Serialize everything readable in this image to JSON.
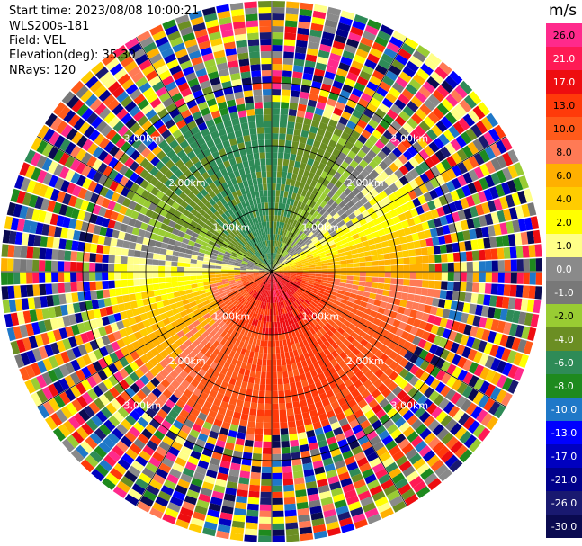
{
  "header": {
    "start_time": "Start time: 2023/08/08 10:00:21",
    "instrument": "WLS200s-181",
    "field": "Field: VEL",
    "elevation": "Elevation(deg): 35.30",
    "nrays": "NRays: 120"
  },
  "chart_data": {
    "type": "heatmap",
    "projection": "polar-ppi",
    "field": "VEL",
    "nrays": 120,
    "range_rings_km": [
      1.0,
      2.0,
      3.0
    ],
    "ring_labels": [
      "1.00km",
      "2.00km",
      "3.00km"
    ],
    "max_range_km": 4.3,
    "noise_beyond_km": 2.4,
    "colorbar": {
      "unit": "m/s",
      "ticks": [
        "26.0",
        "21.0",
        "17.0",
        "13.0",
        "10.0",
        "8.0",
        "6.0",
        "4.0",
        "2.0",
        "1.0",
        "0.0",
        "-1.0",
        "-2.0",
        "-4.0",
        "-6.0",
        "-8.0",
        "-10.0",
        "-13.0",
        "-17.0",
        "-21.0",
        "-26.0",
        "-30.0"
      ],
      "colors": [
        "#ff2a8c",
        "#ff1a55",
        "#ee0d10",
        "#ff3a0a",
        "#ff5a1a",
        "#ff7a55",
        "#ffb000",
        "#ffcc00",
        "#ffff00",
        "#ffff88",
        "#8a8a8a",
        "#787878",
        "#99cc33",
        "#6b8e23",
        "#2e8b57",
        "#1e8a1e",
        "#1f78c8",
        "#0000ff",
        "#0000c0",
        "#00008b",
        "#191970",
        "#0a0a50"
      ]
    },
    "velocity_pattern": {
      "near_east_north": "-1.0 to 0.0",
      "north": "-8.0 to -6.0",
      "south": "4.0 to 10.0",
      "center_south": "13.0"
    }
  }
}
